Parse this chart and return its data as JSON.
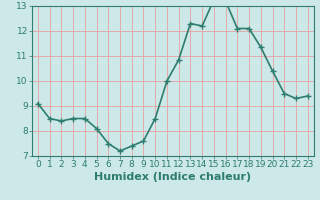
{
  "x": [
    0,
    1,
    2,
    3,
    4,
    5,
    6,
    7,
    8,
    9,
    10,
    11,
    12,
    13,
    14,
    15,
    16,
    17,
    18,
    19,
    20,
    21,
    22,
    23
  ],
  "y": [
    9.1,
    8.5,
    8.4,
    8.5,
    8.5,
    8.1,
    7.5,
    7.2,
    7.4,
    7.6,
    8.5,
    10.0,
    10.85,
    12.3,
    12.2,
    13.25,
    13.2,
    12.1,
    12.1,
    11.35,
    10.4,
    9.5,
    9.3,
    9.4
  ],
  "xlabel": "Humidex (Indice chaleur)",
  "ylim": [
    7,
    13
  ],
  "xlim_min": -0.5,
  "xlim_max": 23.5,
  "yticks": [
    7,
    8,
    9,
    10,
    11,
    12,
    13
  ],
  "xticks": [
    0,
    1,
    2,
    3,
    4,
    5,
    6,
    7,
    8,
    9,
    10,
    11,
    12,
    13,
    14,
    15,
    16,
    17,
    18,
    19,
    20,
    21,
    22,
    23
  ],
  "line_color": "#2e7d6e",
  "marker": "+",
  "marker_size": 4,
  "bg_color": "#cce8e8",
  "grid_color_major": "#e8a0a0",
  "grid_color_minor": "#e0c8c8",
  "tick_color": "#2e7d6e",
  "label_color": "#2e7d6e",
  "xlabel_fontsize": 8,
  "tick_fontsize": 6.5,
  "line_width": 1.2,
  "marker_linewidth": 1.0
}
